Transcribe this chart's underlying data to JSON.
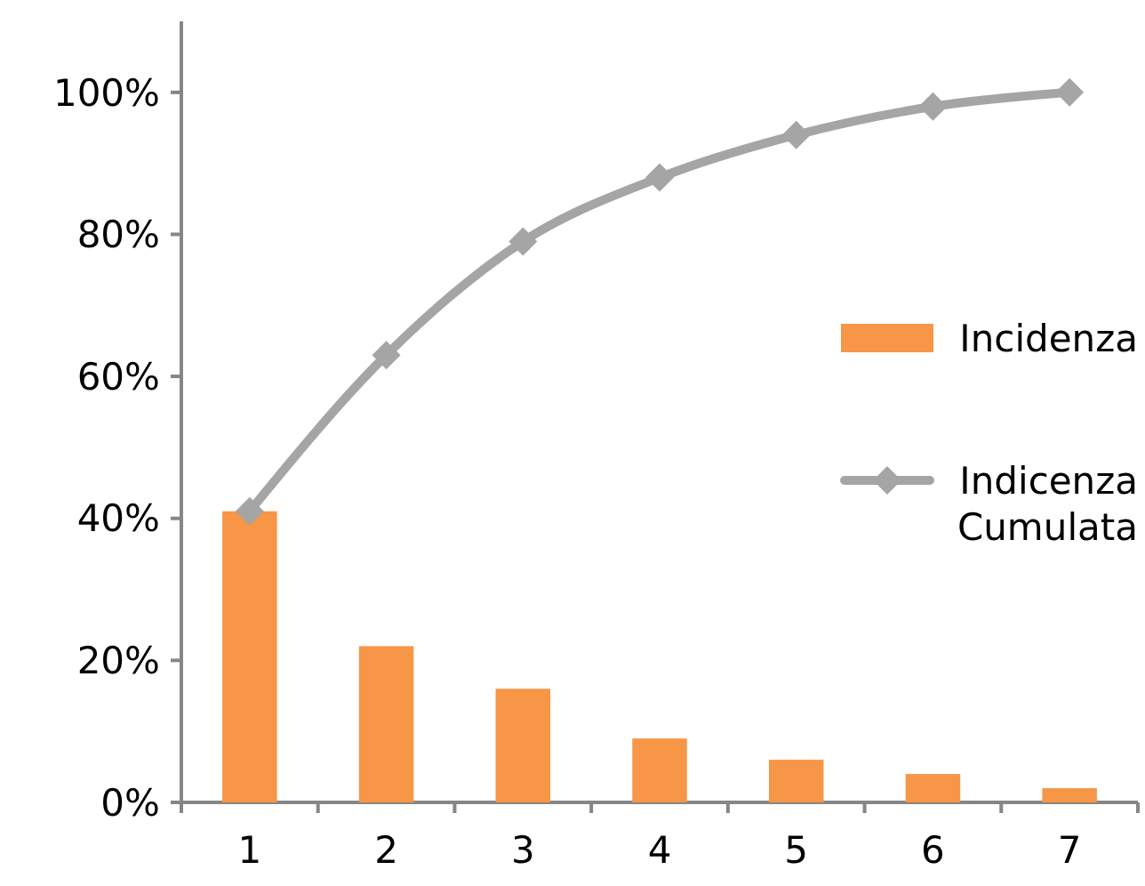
{
  "chart_data": {
    "type": "bar",
    "categories": [
      "1",
      "2",
      "3",
      "4",
      "5",
      "6",
      "7"
    ],
    "series": [
      {
        "name": "Incidenza",
        "color": "#f79646",
        "values": [
          41,
          22,
          16,
          9,
          6,
          4,
          2
        ]
      },
      {
        "name": "Indicenza Cumulata",
        "type": "line",
        "color": "#a5a5a5",
        "marker": "diamond",
        "values": [
          41,
          63,
          79,
          88,
          94,
          98,
          100
        ]
      }
    ],
    "ylim": [
      0,
      110
    ],
    "yticks": [
      {
        "value": 0,
        "label": "0%"
      },
      {
        "value": 20,
        "label": "20%"
      },
      {
        "value": 40,
        "label": "40%"
      },
      {
        "value": 60,
        "label": "60%"
      },
      {
        "value": 80,
        "label": "80%"
      },
      {
        "value": 100,
        "label": "100%"
      }
    ],
    "grid": false,
    "legend": "right"
  }
}
